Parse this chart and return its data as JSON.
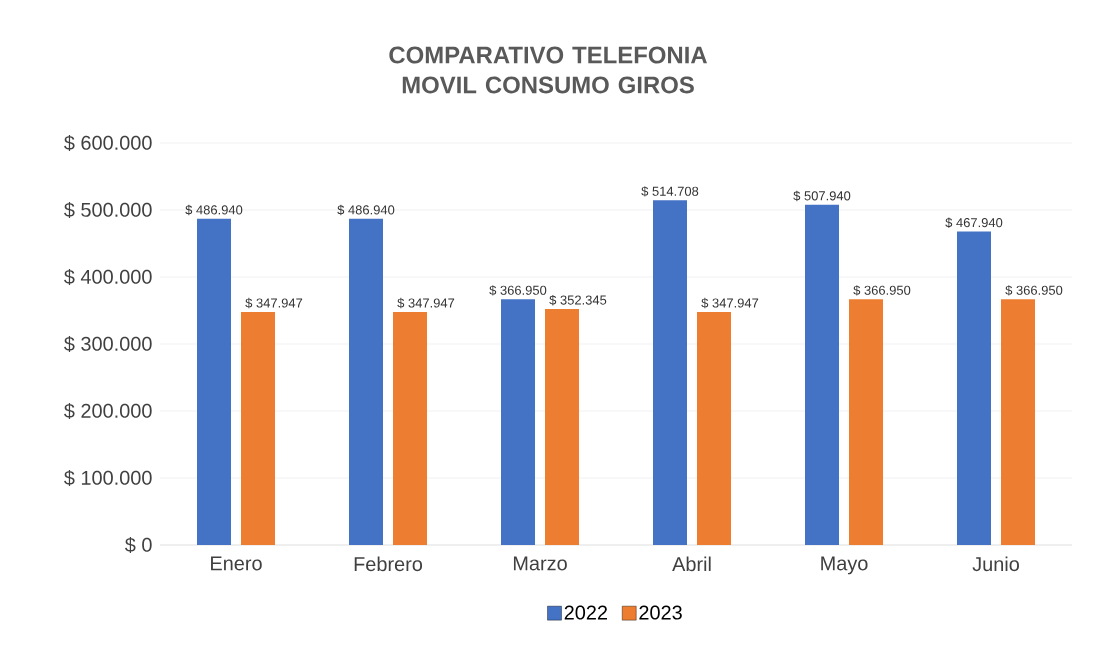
{
  "chart_data": {
    "type": "bar",
    "title": "COMPARATIVO TELEFONIA MOVIL CONSUMO GIROS",
    "categories": [
      "Enero",
      "Febrero",
      "Marzo",
      "Abril",
      "Mayo",
      "Junio"
    ],
    "series": [
      {
        "name": "2022",
        "color": "#4472c4",
        "values": [
          486940,
          486940,
          366950,
          514708,
          507940,
          467940
        ],
        "value_labels": [
          "$ 486.940",
          "$ 486.940",
          "$ 366.950",
          "$ 514.708",
          "$ 507.940",
          "$ 467.940"
        ]
      },
      {
        "name": "2023",
        "color": "#ed7d31",
        "values": [
          347947,
          347947,
          352345,
          347947,
          366950,
          366950
        ],
        "value_labels": [
          "$ 347.947",
          "$ 347.947",
          "$ 352.345",
          "$ 347.947",
          "$ 366.950",
          "$ 366.950"
        ]
      }
    ],
    "ylim": [
      0,
      600000
    ],
    "yticks": [
      {
        "value": 0,
        "label": "$ 0"
      },
      {
        "value": 100000,
        "label": "$ 100.000"
      },
      {
        "value": 200000,
        "label": "$ 200.000"
      },
      {
        "value": 300000,
        "label": "$ 300.000"
      },
      {
        "value": 400000,
        "label": "$ 400.000"
      },
      {
        "value": 500000,
        "label": "$ 500.000"
      },
      {
        "value": 600000,
        "label": "$ 600.000"
      }
    ],
    "grid": "y",
    "legend": "bottom"
  }
}
